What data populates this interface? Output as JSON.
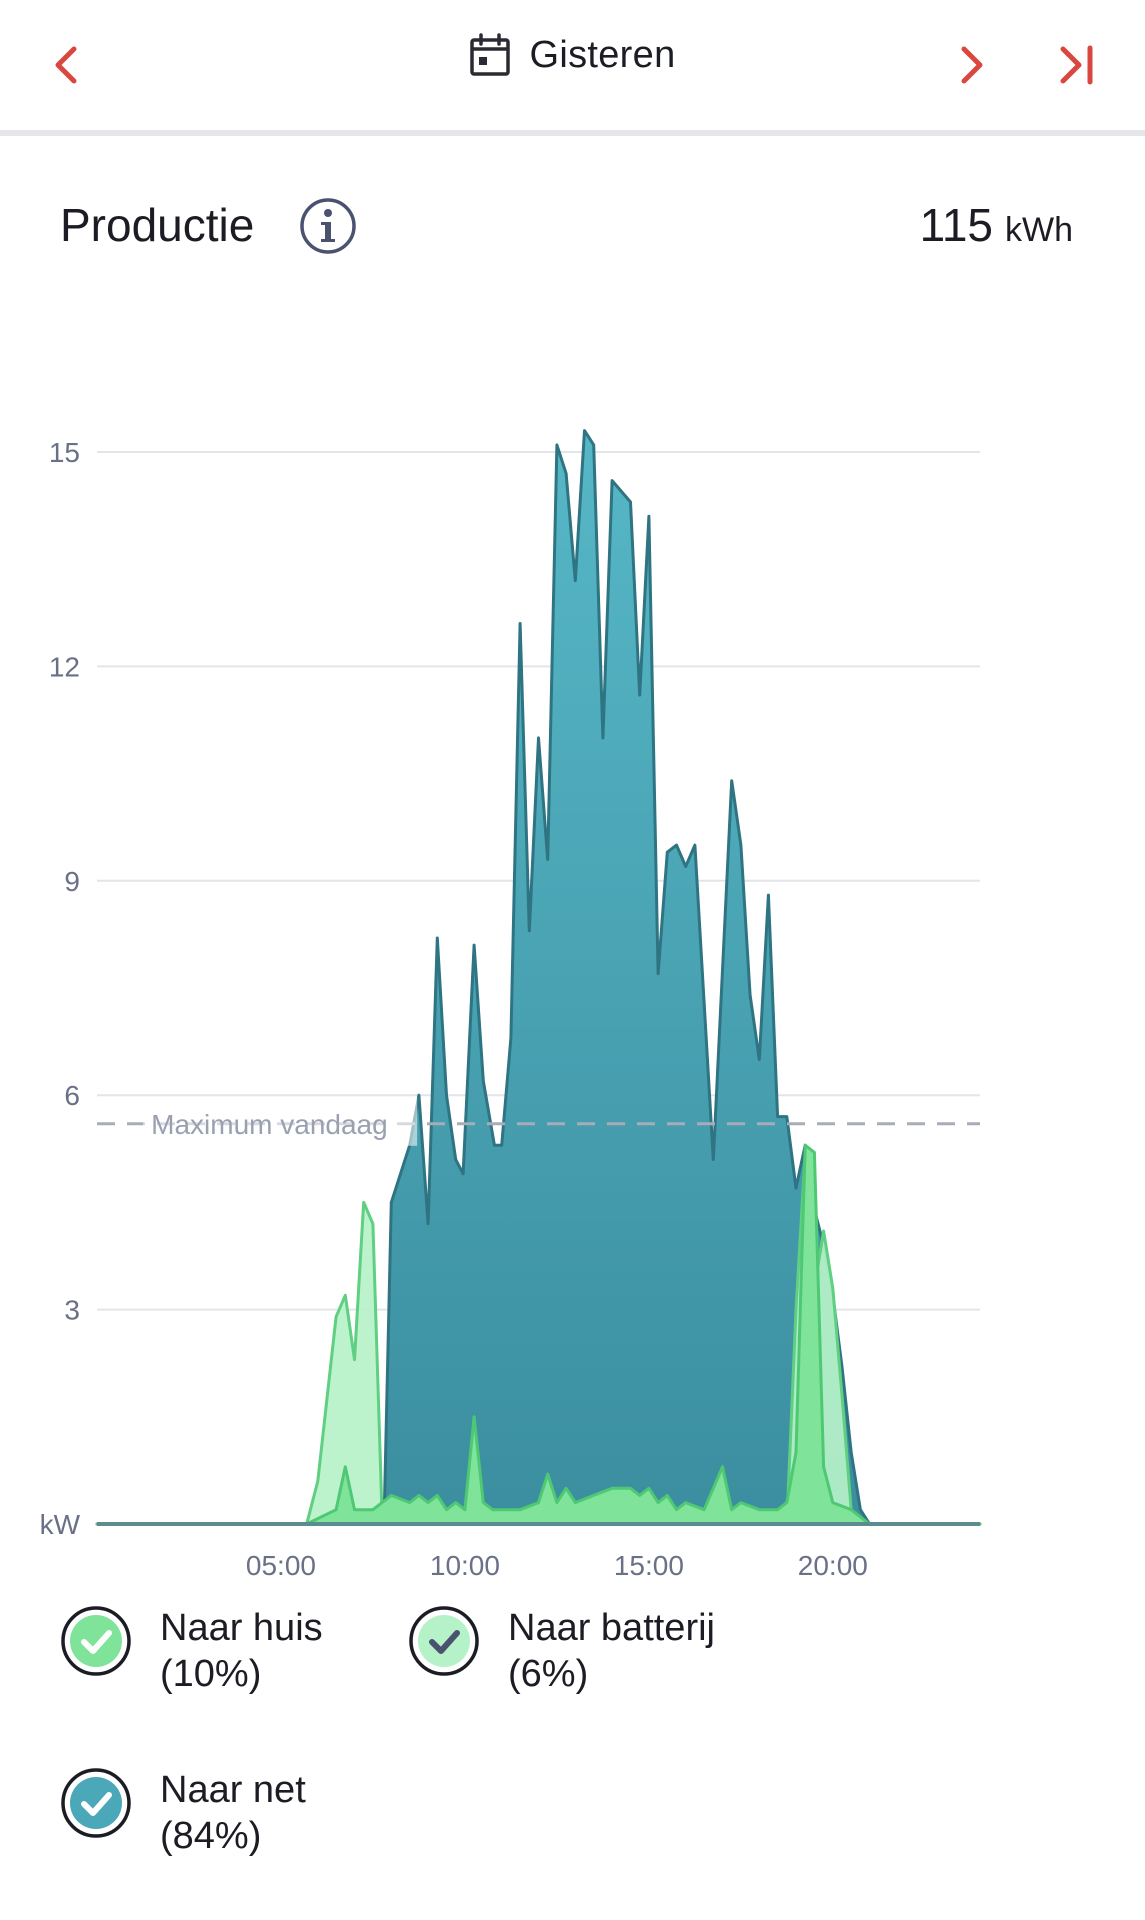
{
  "header": {
    "date_label": "Gisteren",
    "back_icon": "chevron-left-icon",
    "forward_icon": "chevron-right-icon",
    "latest_icon": "skip-to-end-icon",
    "calendar_icon": "calendar-icon",
    "accent": "#d9473e"
  },
  "section": {
    "title": "Productie",
    "info_icon": "info-icon",
    "total_value": "115",
    "total_unit": "kWh"
  },
  "chart_data": {
    "type": "area",
    "ylabel": "kW",
    "ylim": [
      0,
      15
    ],
    "yticks": [
      "15",
      "12",
      "9",
      "6",
      "3"
    ],
    "xlim": [
      0,
      24
    ],
    "xticks": [
      {
        "label": "05:00",
        "hour": 5
      },
      {
        "label": "10:00",
        "hour": 10
      },
      {
        "label": "15:00",
        "hour": 15
      },
      {
        "label": "20:00",
        "hour": 20
      }
    ],
    "grid": true,
    "reference_line": {
      "label": "Maximum vandaag",
      "value": 5.6
    },
    "series": [
      {
        "name": "Naar net",
        "color": "#4aa8b8",
        "stroke": "#2f7482",
        "points": [
          [
            0,
            0
          ],
          [
            7.8,
            0
          ],
          [
            8.0,
            4.5
          ],
          [
            8.5,
            5.3
          ],
          [
            8.75,
            6.0
          ],
          [
            9.0,
            4.2
          ],
          [
            9.25,
            8.2
          ],
          [
            9.5,
            6.0
          ],
          [
            9.75,
            5.1
          ],
          [
            9.95,
            4.9
          ],
          [
            10.25,
            8.1
          ],
          [
            10.5,
            6.2
          ],
          [
            10.8,
            5.3
          ],
          [
            11.0,
            5.3
          ],
          [
            11.25,
            6.8
          ],
          [
            11.5,
            12.6
          ],
          [
            11.75,
            8.3
          ],
          [
            12.0,
            11.0
          ],
          [
            12.25,
            9.3
          ],
          [
            12.5,
            15.1
          ],
          [
            12.75,
            14.7
          ],
          [
            13.0,
            13.2
          ],
          [
            13.25,
            15.3
          ],
          [
            13.5,
            15.1
          ],
          [
            13.75,
            11.0
          ],
          [
            14.0,
            14.6
          ],
          [
            14.5,
            14.3
          ],
          [
            14.75,
            11.6
          ],
          [
            15.0,
            14.1
          ],
          [
            15.25,
            7.7
          ],
          [
            15.5,
            9.4
          ],
          [
            15.75,
            9.5
          ],
          [
            16.0,
            9.2
          ],
          [
            16.25,
            9.5
          ],
          [
            16.75,
            5.1
          ],
          [
            17.25,
            10.4
          ],
          [
            17.5,
            9.5
          ],
          [
            17.75,
            7.4
          ],
          [
            18.0,
            6.5
          ],
          [
            18.25,
            8.8
          ],
          [
            18.5,
            5.7
          ],
          [
            18.75,
            5.7
          ],
          [
            19.0,
            4.7
          ],
          [
            19.25,
            5.3
          ],
          [
            19.5,
            4.4
          ],
          [
            19.75,
            3.9
          ],
          [
            20.0,
            3.2
          ],
          [
            20.25,
            2.2
          ],
          [
            20.5,
            1.0
          ],
          [
            20.75,
            0.2
          ],
          [
            21.0,
            0
          ],
          [
            24,
            0
          ]
        ]
      },
      {
        "name": "Naar batterij",
        "color": "#b6f2c8",
        "stroke": "#5fcf82",
        "points": [
          [
            0,
            0
          ],
          [
            5.7,
            0
          ],
          [
            6.0,
            0.6
          ],
          [
            6.5,
            2.9
          ],
          [
            6.75,
            3.2
          ],
          [
            7.0,
            2.3
          ],
          [
            7.25,
            4.5
          ],
          [
            7.5,
            4.2
          ],
          [
            7.75,
            0.1
          ],
          [
            8.0,
            0
          ],
          [
            18.75,
            0
          ],
          [
            19.0,
            3.0
          ],
          [
            19.25,
            5.2
          ],
          [
            19.5,
            3.3
          ],
          [
            19.75,
            4.1
          ],
          [
            20.0,
            3.3
          ],
          [
            20.25,
            1.8
          ],
          [
            20.5,
            0.2
          ],
          [
            20.75,
            0
          ],
          [
            24,
            0
          ]
        ]
      },
      {
        "name": "Naar huis",
        "color": "#7fe39a",
        "stroke": "#4fc874",
        "points": [
          [
            0,
            0
          ],
          [
            5.7,
            0
          ],
          [
            6.5,
            0.2
          ],
          [
            6.75,
            0.8
          ],
          [
            7.0,
            0.2
          ],
          [
            7.5,
            0.2
          ],
          [
            8.0,
            0.4
          ],
          [
            8.5,
            0.3
          ],
          [
            8.75,
            0.4
          ],
          [
            9.0,
            0.3
          ],
          [
            9.25,
            0.4
          ],
          [
            9.5,
            0.2
          ],
          [
            9.75,
            0.3
          ],
          [
            10.0,
            0.2
          ],
          [
            10.25,
            1.5
          ],
          [
            10.5,
            0.3
          ],
          [
            10.75,
            0.2
          ],
          [
            11.0,
            0.2
          ],
          [
            11.5,
            0.2
          ],
          [
            12.0,
            0.3
          ],
          [
            12.25,
            0.7
          ],
          [
            12.5,
            0.3
          ],
          [
            12.75,
            0.5
          ],
          [
            13.0,
            0.3
          ],
          [
            13.5,
            0.4
          ],
          [
            14.0,
            0.5
          ],
          [
            14.5,
            0.5
          ],
          [
            14.75,
            0.4
          ],
          [
            15.0,
            0.5
          ],
          [
            15.25,
            0.3
          ],
          [
            15.5,
            0.4
          ],
          [
            15.75,
            0.2
          ],
          [
            16.0,
            0.3
          ],
          [
            16.5,
            0.2
          ],
          [
            17.0,
            0.8
          ],
          [
            17.25,
            0.2
          ],
          [
            17.5,
            0.3
          ],
          [
            18.0,
            0.2
          ],
          [
            18.5,
            0.2
          ],
          [
            18.75,
            0.3
          ],
          [
            19.0,
            1.0
          ],
          [
            19.25,
            5.3
          ],
          [
            19.5,
            5.2
          ],
          [
            19.75,
            0.8
          ],
          [
            20.0,
            0.3
          ],
          [
            20.5,
            0.2
          ],
          [
            20.75,
            0.1
          ],
          [
            21.0,
            0
          ],
          [
            24,
            0
          ]
        ]
      }
    ]
  },
  "legend": [
    {
      "label": "Naar huis",
      "percent": "(10%)",
      "color": "#7fe39a",
      "icon": "checkmark-icon"
    },
    {
      "label": "Naar batterij",
      "percent": "(6%)",
      "color": "#b6f2c8",
      "icon": "checkmark-icon"
    },
    {
      "label": "Naar net",
      "percent": "(84%)",
      "color": "#4aa8b8",
      "icon": "checkmark-icon"
    }
  ]
}
